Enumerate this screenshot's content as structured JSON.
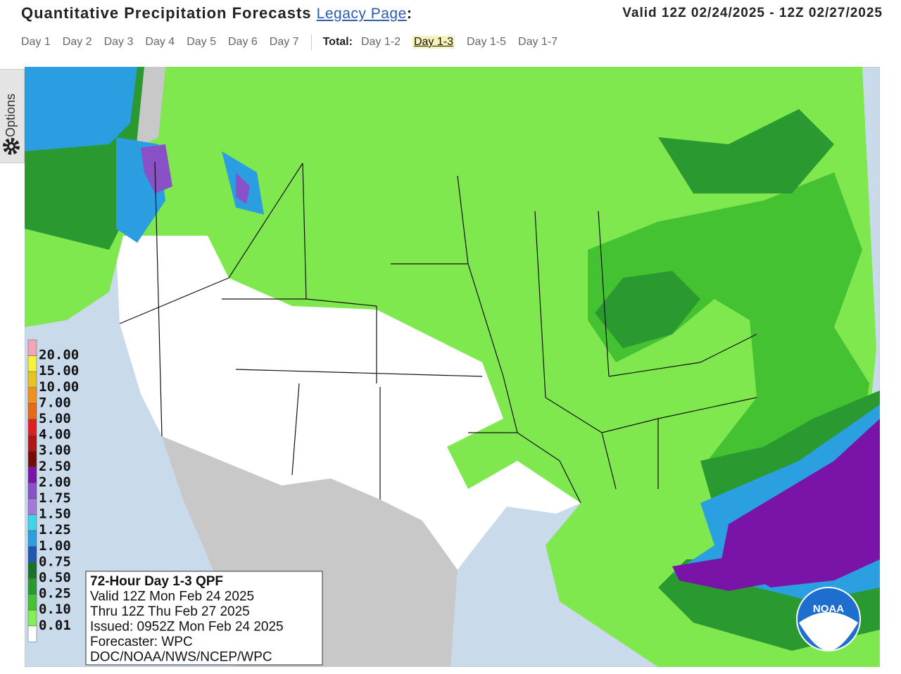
{
  "header": {
    "title": "Quantitative Precipitation Forecasts",
    "legacy_link": "Legacy Page",
    "title_suffix": ":",
    "valid": "Valid 12Z 02/24/2025 - 12Z 02/27/2025"
  },
  "tabs": {
    "days": [
      "Day 1",
      "Day 2",
      "Day 3",
      "Day 4",
      "Day 5",
      "Day 6",
      "Day 7"
    ],
    "total_label": "Total:",
    "totals": [
      "Day 1-2",
      "Day 1-3",
      "Day 1-5",
      "Day 1-7"
    ],
    "selected_total": 1
  },
  "options_tab": "Options",
  "legend": [
    {
      "label": "20.00",
      "color": "#f4a6b8"
    },
    {
      "label": "15.00",
      "color": "#f6f23c"
    },
    {
      "label": "10.00",
      "color": "#e8c420"
    },
    {
      "label": "7.00",
      "color": "#f0901e"
    },
    {
      "label": "5.00",
      "color": "#e86a14"
    },
    {
      "label": "4.00",
      "color": "#e02020"
    },
    {
      "label": "3.00",
      "color": "#b01414"
    },
    {
      "label": "2.50",
      "color": "#780a0a"
    },
    {
      "label": "2.00",
      "color": "#7a14a8"
    },
    {
      "label": "1.75",
      "color": "#8a50c8"
    },
    {
      "label": "1.50",
      "color": "#a47ad8"
    },
    {
      "label": "1.25",
      "color": "#3ed6e6"
    },
    {
      "label": "1.00",
      "color": "#2a9ee0"
    },
    {
      "label": "0.75",
      "color": "#1e58b0"
    },
    {
      "label": "0.50",
      "color": "#18722a"
    },
    {
      "label": "0.25",
      "color": "#2a9a30"
    },
    {
      "label": "0.10",
      "color": "#44c232"
    },
    {
      "label": "0.01",
      "color": "#82f052"
    }
  ],
  "info_box": [
    "72-Hour Day 1-3 QPF",
    "Valid 12Z Mon Feb 24 2025",
    "Thru 12Z Thu Feb 27 2025",
    "Issued: 0952Z Mon Feb 24 2025",
    "Forecaster: WPC",
    "DOC/NOAA/NWS/NCEP/WPC"
  ],
  "logo": "NOAA"
}
